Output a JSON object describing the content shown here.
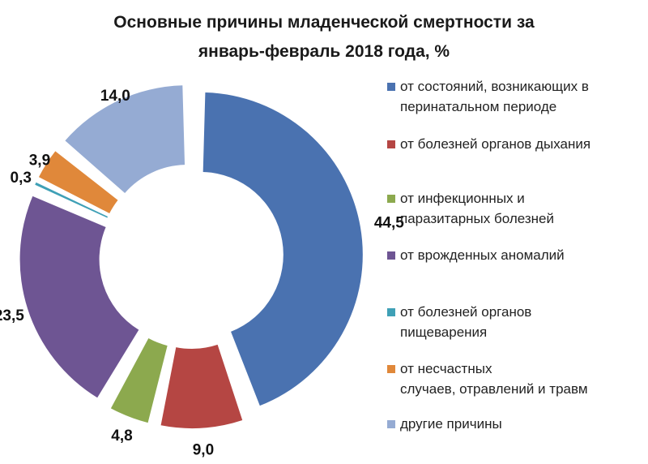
{
  "chart_data": {
    "type": "pie",
    "variant": "exploded-donut",
    "title": "Основные причины младенческой смертности за январь-февраль 2018 года, %",
    "categories": [
      "от состояний, возникающих в перинатальном периоде",
      "от болезней органов дыхания",
      "от инфекционных и паразитарных болезней",
      "от врожденных аномалий",
      "от болезней органов пищеварения",
      "от несчастных случаев, отравлений и травм",
      "другие причины"
    ],
    "values": [
      44.5,
      9.0,
      4.8,
      23.5,
      0.3,
      3.9,
      14.0
    ],
    "value_labels": [
      "44,5",
      "9,0",
      "4,8",
      "23,5",
      "0,3",
      "3,9",
      "14,0"
    ],
    "colors": [
      "#4A72B0",
      "#B54643",
      "#8CA94E",
      "#6E5593",
      "#3FA0B6",
      "#E0883A",
      "#95ABD3"
    ],
    "legend_position": "right"
  },
  "title_lines": [
    "Основные причины младенческой смертности за",
    "январь-февраль 2018 года, %"
  ],
  "legend": [
    [
      "от состояний, возникающих в",
      "перинатальном периоде"
    ],
    [
      "от болезней органов дыхания"
    ],
    [
      "от инфекционных и",
      "паразитарных болезней"
    ],
    [
      "от врожденных аномалий"
    ],
    [
      "от болезней органов",
      "пищеварения"
    ],
    [
      "от несчастных",
      "случаев, отравлений и травм"
    ],
    [
      "другие причины"
    ]
  ]
}
